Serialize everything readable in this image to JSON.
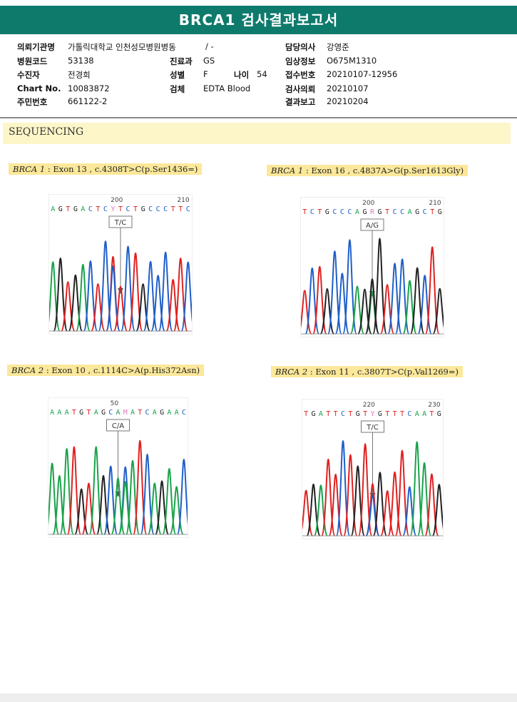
{
  "report": {
    "title": "BRCA1 검사결과보고서"
  },
  "header": {
    "rows": [
      [
        {
          "label": "의뢰기관명",
          "value": "가톨릭대학교 인천성모병원병동"
        },
        {
          "label": "",
          "value": "/ -"
        },
        {
          "label": "담당의사",
          "value": "강영준"
        }
      ],
      [
        {
          "label": "병원코드",
          "value": "53138"
        },
        {
          "label": "진료과",
          "value": "GS"
        },
        {
          "label": "임상정보",
          "value": "O675M1310"
        }
      ],
      [
        {
          "label": "수진자",
          "value": "전경희"
        },
        {
          "label": "성별",
          "value": "F"
        },
        {
          "label": "나이",
          "value": "54"
        },
        {
          "label": "접수번호",
          "value": "20210107-12956"
        }
      ],
      [
        {
          "label": "Chart No.",
          "value": "10083872"
        },
        {
          "label": "검체",
          "value": "EDTA Blood"
        },
        {
          "label": "검사의뢰",
          "value": "20210107"
        }
      ],
      [
        {
          "label": "주민번호",
          "value": "661122-2"
        },
        {
          "label": "결과보고",
          "value": "20210204"
        }
      ]
    ]
  },
  "section": {
    "title": "SEQUENCING"
  },
  "variants": [
    {
      "gene": "BRCA 1",
      "detail": " : Exon 13 , c.4308T>C(p.Ser1436=)",
      "ticks": [
        "200",
        "210"
      ],
      "seq": "AGTGACTCYTCTGCCCTTC",
      "call": "T/C"
    },
    {
      "gene": "BRCA 1",
      "detail": " : Exon 16 , c.4837A>G(p.Ser1613Gly)",
      "ticks": [
        "200",
        "210"
      ],
      "seq": "TCTGCCCAGRGTCCAGCTG",
      "call": "A/G"
    },
    {
      "gene": "BRCA 2",
      "detail": " : Exon 10 , c.1114C>A(p.His372Asn)",
      "ticks": [
        "50"
      ],
      "seq": "AAATGTAGCAMATCAGAAC",
      "call": "C/A"
    },
    {
      "gene": "BRCA 2",
      "detail": " : Exon 11 , c.3807T>C(p.Val1269=)",
      "ticks": [
        "220",
        "230"
      ],
      "seq": "TGATTCTGTYGTTTCAATG",
      "call": "T/C"
    }
  ],
  "colors": {
    "A": "#1aa34a",
    "C": "#1f5fc8",
    "G": "#222222",
    "T": "#e02020",
    "other": "#e07ac0",
    "header": "#0e7a6c"
  }
}
